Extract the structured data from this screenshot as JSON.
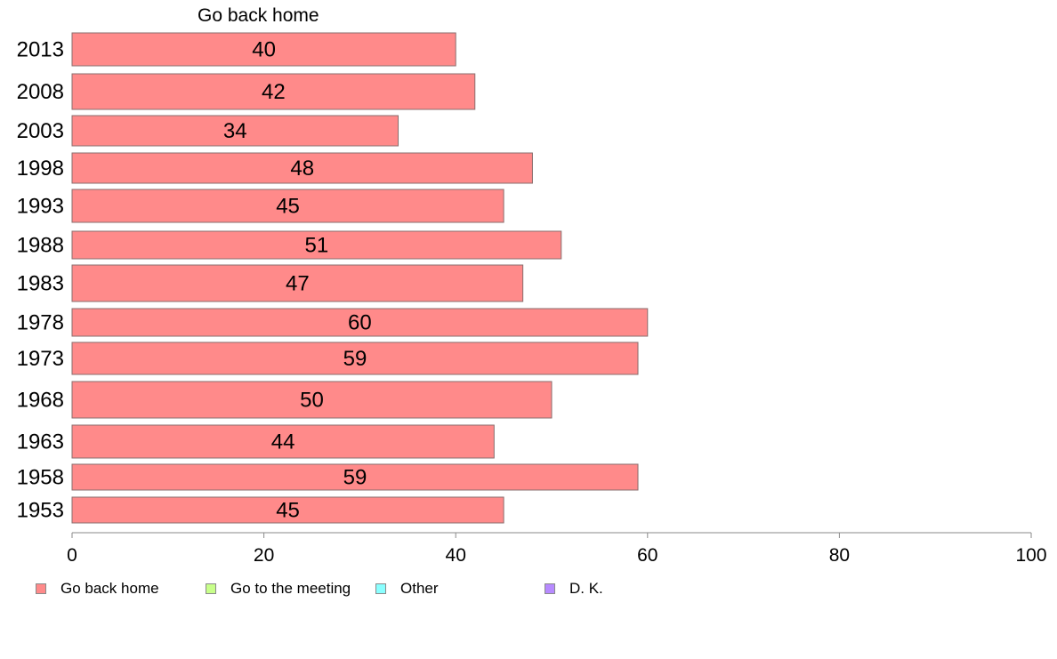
{
  "chart_data": {
    "type": "bar",
    "orientation": "horizontal",
    "title": "Go back home",
    "categories": [
      "2013",
      "2008",
      "2003",
      "1998",
      "1993",
      "1988",
      "1983",
      "1978",
      "1973",
      "1968",
      "1963",
      "1958",
      "1953"
    ],
    "series": [
      {
        "name": "Go back home",
        "color": "#ff8a8a",
        "values": [
          40,
          42,
          34,
          48,
          45,
          51,
          47,
          60,
          59,
          50,
          44,
          59,
          45
        ]
      }
    ],
    "data_labels": [
      "40",
      "42",
      "34",
      "48",
      "45",
      "51",
      "47",
      "60",
      "59",
      "50",
      "44",
      "59",
      "45"
    ],
    "xlim": [
      0,
      100
    ],
    "x_ticks": [
      "0",
      "20",
      "40",
      "60",
      "80",
      "100"
    ],
    "grid": false,
    "legend_position": "bottom",
    "legend": [
      {
        "label": "Go back home",
        "color": "#ff8a8a"
      },
      {
        "label": "Go to the meeting",
        "color": "#c8ff8a"
      },
      {
        "label": "Other",
        "color": "#8affff"
      },
      {
        "label": "D. K.",
        "color": "#b78aff"
      }
    ]
  }
}
